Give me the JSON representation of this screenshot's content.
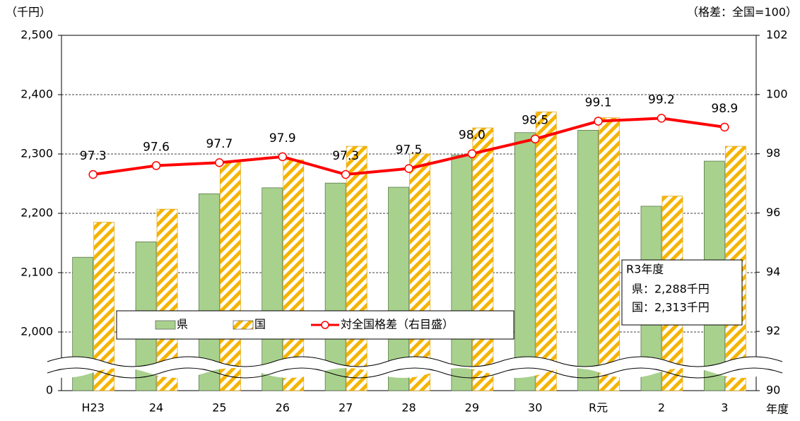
{
  "chart_data": {
    "type": "bar",
    "y_unit": "（千円）",
    "y2_unit": "（格差：全国=100）",
    "x_label": "年度",
    "categories": [
      "H23",
      "24",
      "25",
      "26",
      "27",
      "28",
      "29",
      "30",
      "R元",
      "2",
      "3"
    ],
    "series": [
      {
        "name": "県",
        "color": "#a9d18e",
        "values": [
          2126,
          2152,
          2233,
          2243,
          2251,
          2244,
          2298,
          2336,
          2340,
          2212,
          2288
        ]
      },
      {
        "name": "国",
        "color": "#f5b400",
        "pattern": "hatch",
        "values": [
          2185,
          2207,
          2286,
          2290,
          2313,
          2300,
          2344,
          2371,
          2361,
          2229,
          2313
        ]
      },
      {
        "name": "対全国格差（右目盛）",
        "type": "line",
        "axis": "y2",
        "color": "#ff0000",
        "values": [
          97.3,
          97.6,
          97.7,
          97.9,
          97.3,
          97.5,
          98,
          98.5,
          99.1,
          99.2,
          98.9
        ],
        "value_labels": [
          "97.3",
          "97.6",
          "97.7",
          "97.9",
          "97.3",
          "97.5",
          "98.0",
          "98.5",
          "99.1",
          "99.2",
          "98.9"
        ]
      }
    ],
    "ylim": [
      0,
      2500
    ],
    "yticks": [
      0,
      {
        "value": 2000,
        "label": "2,000"
      },
      {
        "value": 2100,
        "label": "2,100"
      },
      {
        "value": 2200,
        "label": "2,200"
      },
      {
        "value": 2300,
        "label": "2,300"
      },
      {
        "value": 2400,
        "label": "2,400"
      },
      {
        "value": 2500,
        "label": "2,500"
      }
    ],
    "y_break": true,
    "y2lim": [
      90,
      102
    ],
    "y2ticks": [
      90,
      92,
      94,
      96,
      98,
      100,
      102
    ],
    "grid": true,
    "annotation": {
      "title": "R3年度",
      "lines": [
        "県：2,288千円",
        "国：2,313千円"
      ]
    }
  }
}
